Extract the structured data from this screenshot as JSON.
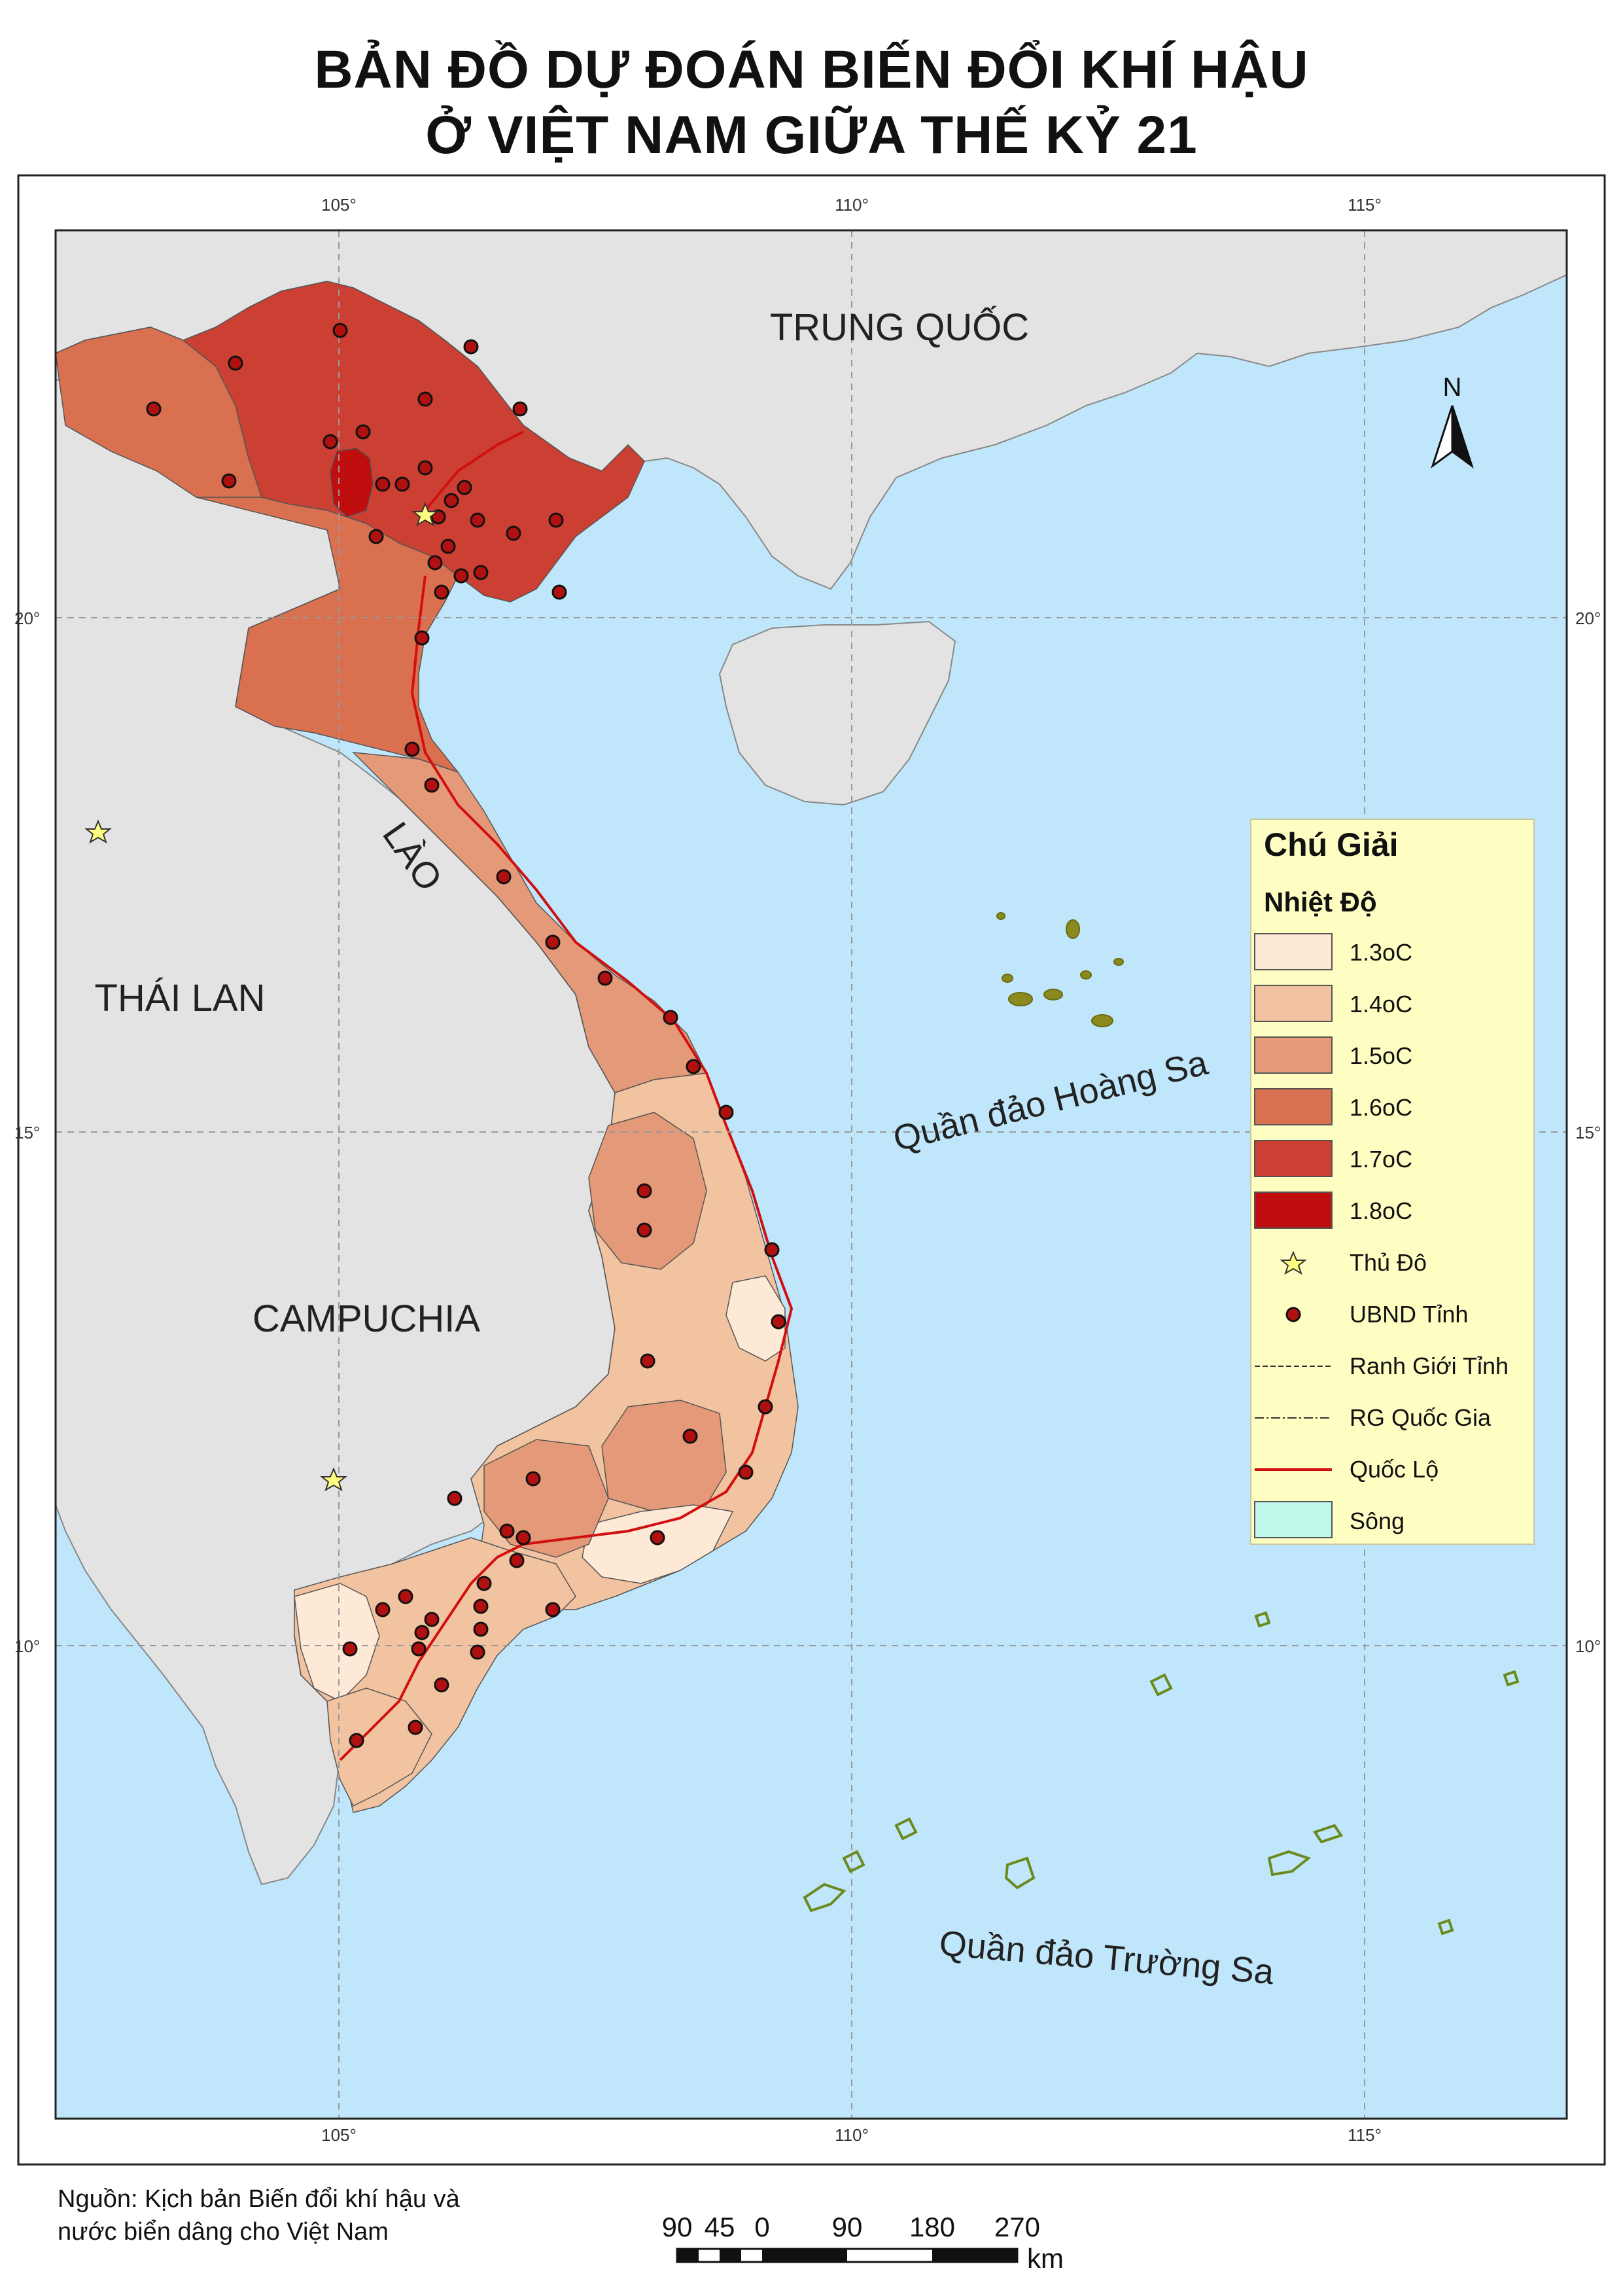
{
  "title": {
    "line1": "BẢN ĐỒ DỰ ĐOÁN BIẾN ĐỔI KHÍ HẬU",
    "line2": "Ở VIỆT NAM GIỮA THẾ KỶ 21"
  },
  "graticule": {
    "top_labels": [
      "105°",
      "110°",
      "115°"
    ],
    "bottom_labels": [
      "105°",
      "110°",
      "115°"
    ],
    "left_labels": [
      "20°",
      "15°",
      "10°"
    ],
    "right_labels": [
      "20°",
      "15°",
      "10°"
    ]
  },
  "place_labels": {
    "china": "TRUNG QUỐC",
    "laos": "LÀO",
    "thailand": "THÁI LAN",
    "cambodia": "CAMPUCHIA",
    "paracel": "Quần đảo Hoàng Sa",
    "spratly": "Quần đảo Trường Sa"
  },
  "north_arrow": {
    "label": "N"
  },
  "legend": {
    "title": "Chú Giải",
    "subtitle": "Nhiệt Độ",
    "classes": [
      {
        "label": "1.3oC",
        "color": "#fde9d6"
      },
      {
        "label": "1.4oC",
        "color": "#f2c3a0"
      },
      {
        "label": "1.5oC",
        "color": "#e49a78"
      },
      {
        "label": "1.6oC",
        "color": "#d9704f"
      },
      {
        "label": "1.7oC",
        "color": "#cc3f33"
      },
      {
        "label": "1.8oC",
        "color": "#c00d0d"
      }
    ],
    "symbols": [
      {
        "label": "Thủ Đô",
        "icon": "star-icon"
      },
      {
        "label": "UBND Tỉnh",
        "icon": "red-dot-icon"
      },
      {
        "label": "Ranh Giới Tỉnh",
        "icon": "dash-line-icon"
      },
      {
        "label": "RG Quốc Gia",
        "icon": "dash-dot-line-icon"
      },
      {
        "label": "Quốc Lộ",
        "icon": "red-line-icon"
      },
      {
        "label": "Sông",
        "icon": "river-fill-icon"
      }
    ]
  },
  "source": {
    "line1": "Nguồn: Kịch bản Biến đổi khí hậu và",
    "line2": "nước biển dâng cho Việt Nam"
  },
  "scale_bar": {
    "labels": [
      "90",
      "45",
      "0",
      "90",
      "180",
      "270"
    ],
    "unit": "km"
  },
  "colors": {
    "sea": "#bfe6fa",
    "land_foreign": "#e3e3e3",
    "legend_bg": "#fefec2",
    "road": "#d20f0f",
    "island": "#8a8a1e"
  }
}
